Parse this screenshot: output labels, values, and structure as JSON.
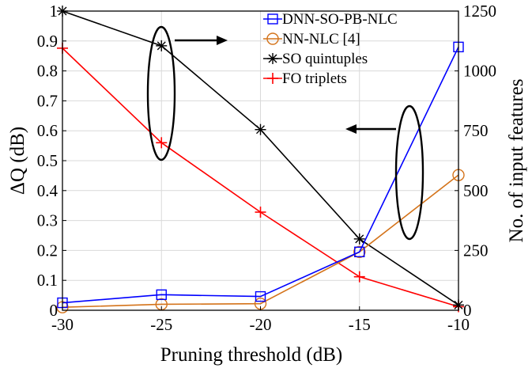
{
  "chart_data": {
    "type": "line",
    "title": "",
    "xlabel": "Pruning threshold (dB)",
    "ylabel_left": "ΔQ (dB)",
    "ylabel_right": "No. of input features",
    "x": [
      -30,
      -25,
      -20,
      -15,
      -10
    ],
    "xlim": [
      -30,
      -10
    ],
    "ylim_left": [
      0,
      1
    ],
    "ylim_right": [
      0,
      1250
    ],
    "xticks": [
      "-30",
      "-25",
      "-20",
      "-15",
      "-10"
    ],
    "yticks_left": [
      "0",
      "0.1",
      "0.2",
      "0.3",
      "0.4",
      "0.5",
      "0.6",
      "0.7",
      "0.8",
      "0.9",
      "1"
    ],
    "yticks_right": [
      "0",
      "250",
      "500",
      "750",
      "1000",
      "1250"
    ],
    "grid": true,
    "legend_position": "top-right",
    "series": [
      {
        "name": "DNN-SO-PB-NLC",
        "axis": "left",
        "color": "#0000ff",
        "marker": "square",
        "values": [
          0.025,
          0.052,
          0.046,
          0.195,
          0.88
        ]
      },
      {
        "name": "NN-NLC [4]",
        "axis": "left",
        "color": "#d4731a",
        "marker": "circle",
        "values": [
          0.01,
          0.02,
          0.022,
          0.195,
          0.452
        ]
      },
      {
        "name": "SO quintuples",
        "axis": "right",
        "color": "#000000",
        "marker": "asterisk",
        "values": [
          1250,
          1105,
          755,
          298,
          22
        ]
      },
      {
        "name": "FO triplets",
        "axis": "right",
        "color": "#ff0000",
        "marker": "plus",
        "values": [
          1095,
          700,
          410,
          140,
          15
        ]
      }
    ],
    "annotations": [
      {
        "type": "ellipse-arrow",
        "points_to": "right axis",
        "groups": [
          "SO quintuples",
          "FO triplets"
        ],
        "at_x": -25
      },
      {
        "type": "ellipse-arrow",
        "points_to": "left axis",
        "groups": [
          "DNN-SO-PB-NLC",
          "NN-NLC [4]"
        ],
        "at_x": -12.5
      }
    ]
  }
}
